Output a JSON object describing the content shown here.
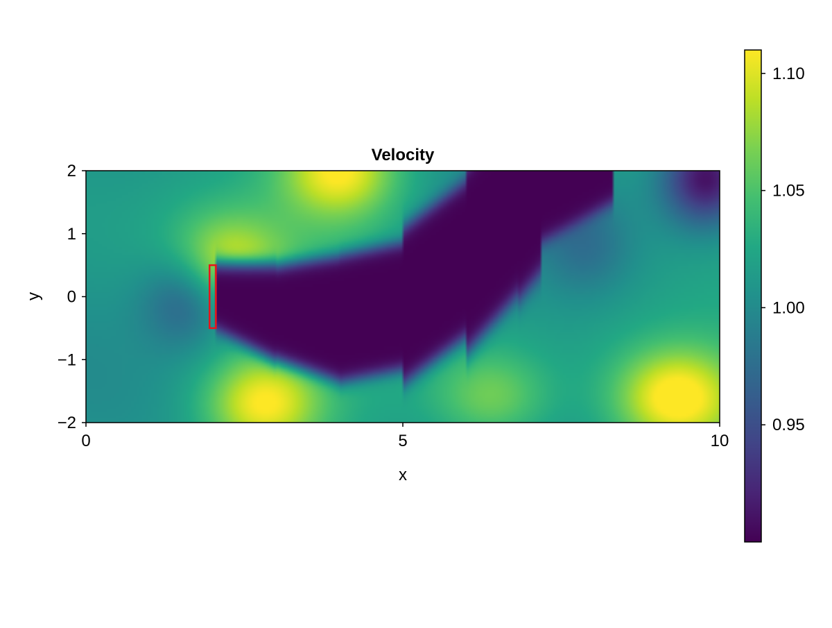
{
  "chart_data": {
    "type": "heatmap",
    "title": "Velocity",
    "xlabel": "x",
    "ylabel": "y",
    "xlim": [
      0,
      10
    ],
    "ylim": [
      -2,
      2
    ],
    "x_ticks": [
      0,
      5,
      10
    ],
    "x_tick_labels": [
      "0",
      "5",
      "10"
    ],
    "y_ticks": [
      -2,
      -1,
      0,
      1,
      2
    ],
    "y_tick_labels": [
      "−2",
      "−1",
      "0",
      "1",
      "2"
    ],
    "grid": false,
    "colormap": "viridis",
    "colorbar": {
      "range": [
        0.9,
        1.11
      ],
      "ticks": [
        0.95,
        1.0,
        1.05,
        1.1
      ],
      "tick_labels": [
        "0.95",
        "1.00",
        "1.05",
        "1.10"
      ],
      "placement": "right"
    },
    "obstacle": {
      "x_range": [
        1.95,
        2.05
      ],
      "y_range": [
        -0.5,
        0.5
      ],
      "color": "#e8141c"
    },
    "field_features": {
      "wake_min_value": 0.9,
      "wake_centerline": [
        [
          2.05,
          0
        ],
        [
          3,
          -0.25
        ],
        [
          4,
          -0.35
        ],
        [
          5,
          -0.15
        ],
        [
          6,
          0.6
        ],
        [
          6.8,
          1.5
        ],
        [
          7.2,
          2.0
        ],
        [
          8.3,
          2.6
        ]
      ],
      "high_regions": [
        {
          "center": [
            2.8,
            -1.7
          ],
          "value": 1.11
        },
        {
          "center": [
            4.0,
            2.0
          ],
          "value": 1.11
        },
        {
          "center": [
            2.2,
            0.55
          ],
          "value": 1.09
        },
        {
          "center": [
            9.3,
            -1.6
          ],
          "value": 1.11
        },
        {
          "center": [
            6.4,
            -1.6
          ],
          "value": 1.07
        }
      ],
      "low_regions": [
        {
          "center": [
            1.6,
            0.0
          ],
          "value": 0.96
        },
        {
          "center": [
            9.8,
            1.9
          ],
          "value": 0.9
        },
        {
          "center": [
            7.9,
            0.8
          ],
          "value": 0.99
        }
      ]
    }
  }
}
